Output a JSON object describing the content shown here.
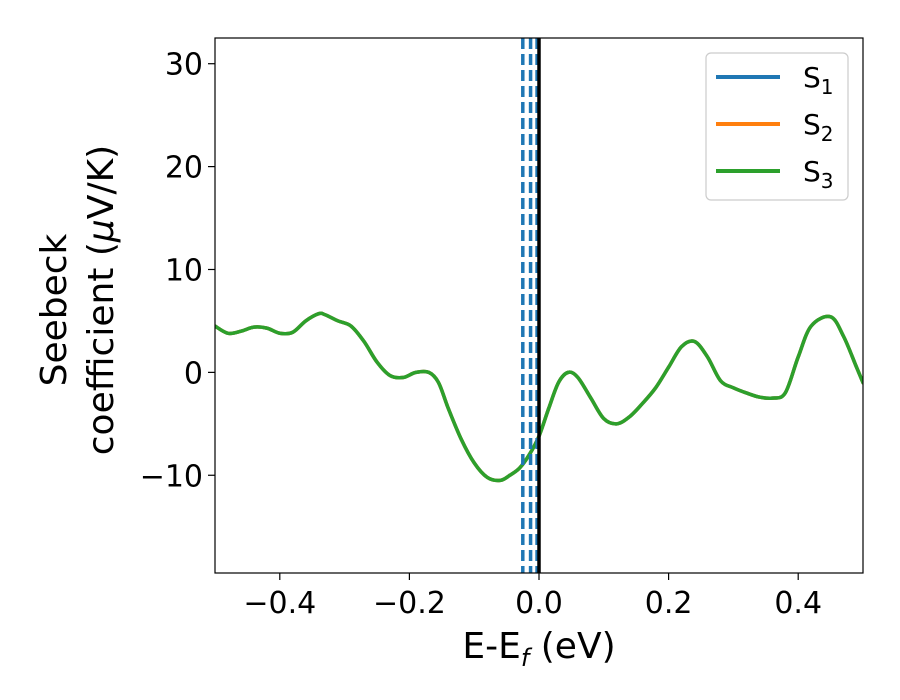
{
  "chart_data": {
    "type": "line",
    "xlabel": {
      "main": "E-E",
      "sub": "f",
      "suffix": " (eV)"
    },
    "ylabel": {
      "line1": "Seebeck",
      "line2_prefix": "coefficient  (",
      "mu": "μ",
      "line2_suffix": "V/K)"
    },
    "xlim": [
      -0.5,
      0.5
    ],
    "ylim": [
      -19.5,
      32.5
    ],
    "xticks": [
      {
        "value": -0.4,
        "label": "−0.4"
      },
      {
        "value": -0.2,
        "label": "−0.2"
      },
      {
        "value": 0.0,
        "label": "0.0"
      },
      {
        "value": 0.2,
        "label": "0.2"
      },
      {
        "value": 0.4,
        "label": "0.4"
      }
    ],
    "yticks": [
      {
        "value": -10,
        "label": "−10"
      },
      {
        "value": 0,
        "label": "0"
      },
      {
        "value": 10,
        "label": "10"
      },
      {
        "value": 20,
        "label": "20"
      },
      {
        "value": 30,
        "label": "30"
      }
    ],
    "legend_position": "top-right",
    "grid": false,
    "series": [
      {
        "name": {
          "base": "S",
          "sub": "1"
        },
        "color": "#1f77b4",
        "x": [
          -0.5,
          -0.48,
          -0.46,
          -0.44,
          -0.42,
          -0.4,
          -0.38,
          -0.36,
          -0.34,
          -0.33,
          -0.31,
          -0.29,
          -0.27,
          -0.25,
          -0.23,
          -0.21,
          -0.19,
          -0.17,
          -0.155,
          -0.14,
          -0.12,
          -0.1,
          -0.08,
          -0.06,
          -0.045,
          -0.03,
          -0.015,
          0.0,
          0.015,
          0.03,
          0.045,
          0.06,
          0.08,
          0.1,
          0.12,
          0.14,
          0.16,
          0.18,
          0.2,
          0.22,
          0.24,
          0.26,
          0.28,
          0.3,
          0.32,
          0.34,
          0.36,
          0.38,
          0.4,
          0.42,
          0.45,
          0.47,
          0.49,
          0.5
        ],
        "y": [
          4.5,
          3.8,
          4.0,
          4.4,
          4.3,
          3.8,
          3.9,
          5.0,
          5.7,
          5.6,
          5.0,
          4.5,
          3.0,
          1.0,
          -0.3,
          -0.5,
          0.0,
          0.0,
          -1.0,
          -3.5,
          -6.5,
          -8.8,
          -10.2,
          -10.5,
          -10.0,
          -9.3,
          -8.0,
          -6.2,
          -3.5,
          -1.0,
          0.0,
          -0.5,
          -2.5,
          -4.5,
          -5.0,
          -4.3,
          -3.0,
          -1.5,
          0.5,
          2.5,
          3.0,
          1.5,
          -0.8,
          -1.5,
          -2.0,
          -2.4,
          -2.5,
          -2.0,
          1.5,
          4.5,
          5.4,
          3.5,
          0.5,
          -1.0
        ]
      },
      {
        "name": {
          "base": "S",
          "sub": "2"
        },
        "color": "#ff7f0e",
        "x": [
          -0.5,
          -0.48,
          -0.46,
          -0.44,
          -0.42,
          -0.4,
          -0.38,
          -0.36,
          -0.34,
          -0.33,
          -0.31,
          -0.29,
          -0.27,
          -0.25,
          -0.23,
          -0.21,
          -0.19,
          -0.17,
          -0.155,
          -0.14,
          -0.12,
          -0.1,
          -0.08,
          -0.06,
          -0.045,
          -0.03,
          -0.015,
          0.0,
          0.015,
          0.03,
          0.045,
          0.06,
          0.08,
          0.1,
          0.12,
          0.14,
          0.16,
          0.18,
          0.2,
          0.22,
          0.24,
          0.26,
          0.28,
          0.3,
          0.32,
          0.34,
          0.36,
          0.38,
          0.4,
          0.42,
          0.45,
          0.47,
          0.49,
          0.5
        ],
        "y": [
          4.5,
          3.8,
          4.0,
          4.4,
          4.3,
          3.8,
          3.9,
          5.0,
          5.7,
          5.6,
          5.0,
          4.5,
          3.0,
          1.0,
          -0.3,
          -0.5,
          0.0,
          0.0,
          -1.0,
          -3.5,
          -6.5,
          -8.8,
          -10.2,
          -10.5,
          -10.0,
          -9.3,
          -8.0,
          -6.2,
          -3.5,
          -1.0,
          0.0,
          -0.5,
          -2.5,
          -4.5,
          -5.0,
          -4.3,
          -3.0,
          -1.5,
          0.5,
          2.5,
          3.0,
          1.5,
          -0.8,
          -1.5,
          -2.0,
          -2.4,
          -2.5,
          -2.0,
          1.5,
          4.5,
          5.4,
          3.5,
          0.5,
          -1.0
        ]
      },
      {
        "name": {
          "base": "S",
          "sub": "3"
        },
        "color": "#2ca02c",
        "x": [
          -0.5,
          -0.48,
          -0.46,
          -0.44,
          -0.42,
          -0.4,
          -0.38,
          -0.36,
          -0.34,
          -0.33,
          -0.31,
          -0.29,
          -0.27,
          -0.25,
          -0.23,
          -0.21,
          -0.19,
          -0.17,
          -0.155,
          -0.14,
          -0.12,
          -0.1,
          -0.08,
          -0.06,
          -0.045,
          -0.03,
          -0.015,
          0.0,
          0.015,
          0.03,
          0.045,
          0.06,
          0.08,
          0.1,
          0.12,
          0.14,
          0.16,
          0.18,
          0.2,
          0.22,
          0.24,
          0.26,
          0.28,
          0.3,
          0.32,
          0.34,
          0.36,
          0.38,
          0.4,
          0.42,
          0.45,
          0.47,
          0.49,
          0.5
        ],
        "y": [
          4.5,
          3.8,
          4.0,
          4.4,
          4.3,
          3.8,
          3.9,
          5.0,
          5.7,
          5.6,
          5.0,
          4.5,
          3.0,
          1.0,
          -0.3,
          -0.5,
          0.0,
          0.0,
          -1.0,
          -3.5,
          -6.5,
          -8.8,
          -10.2,
          -10.5,
          -10.0,
          -9.3,
          -8.0,
          -6.2,
          -3.5,
          -1.0,
          0.0,
          -0.5,
          -2.5,
          -4.5,
          -5.0,
          -4.3,
          -3.0,
          -1.5,
          0.5,
          2.5,
          3.0,
          1.5,
          -0.8,
          -1.5,
          -2.0,
          -2.4,
          -2.5,
          -2.0,
          1.5,
          4.5,
          5.4,
          3.5,
          0.5,
          -1.0
        ]
      }
    ],
    "vlines": [
      {
        "x": -0.025,
        "color": "#1f77b4",
        "style": "dashed"
      },
      {
        "x": -0.013,
        "color": "#1f77b4",
        "style": "dashed"
      },
      {
        "x": -0.003,
        "color": "#1f77b4",
        "style": "dashed"
      },
      {
        "x": 0.0,
        "color": "#000000",
        "style": "solid"
      }
    ]
  }
}
